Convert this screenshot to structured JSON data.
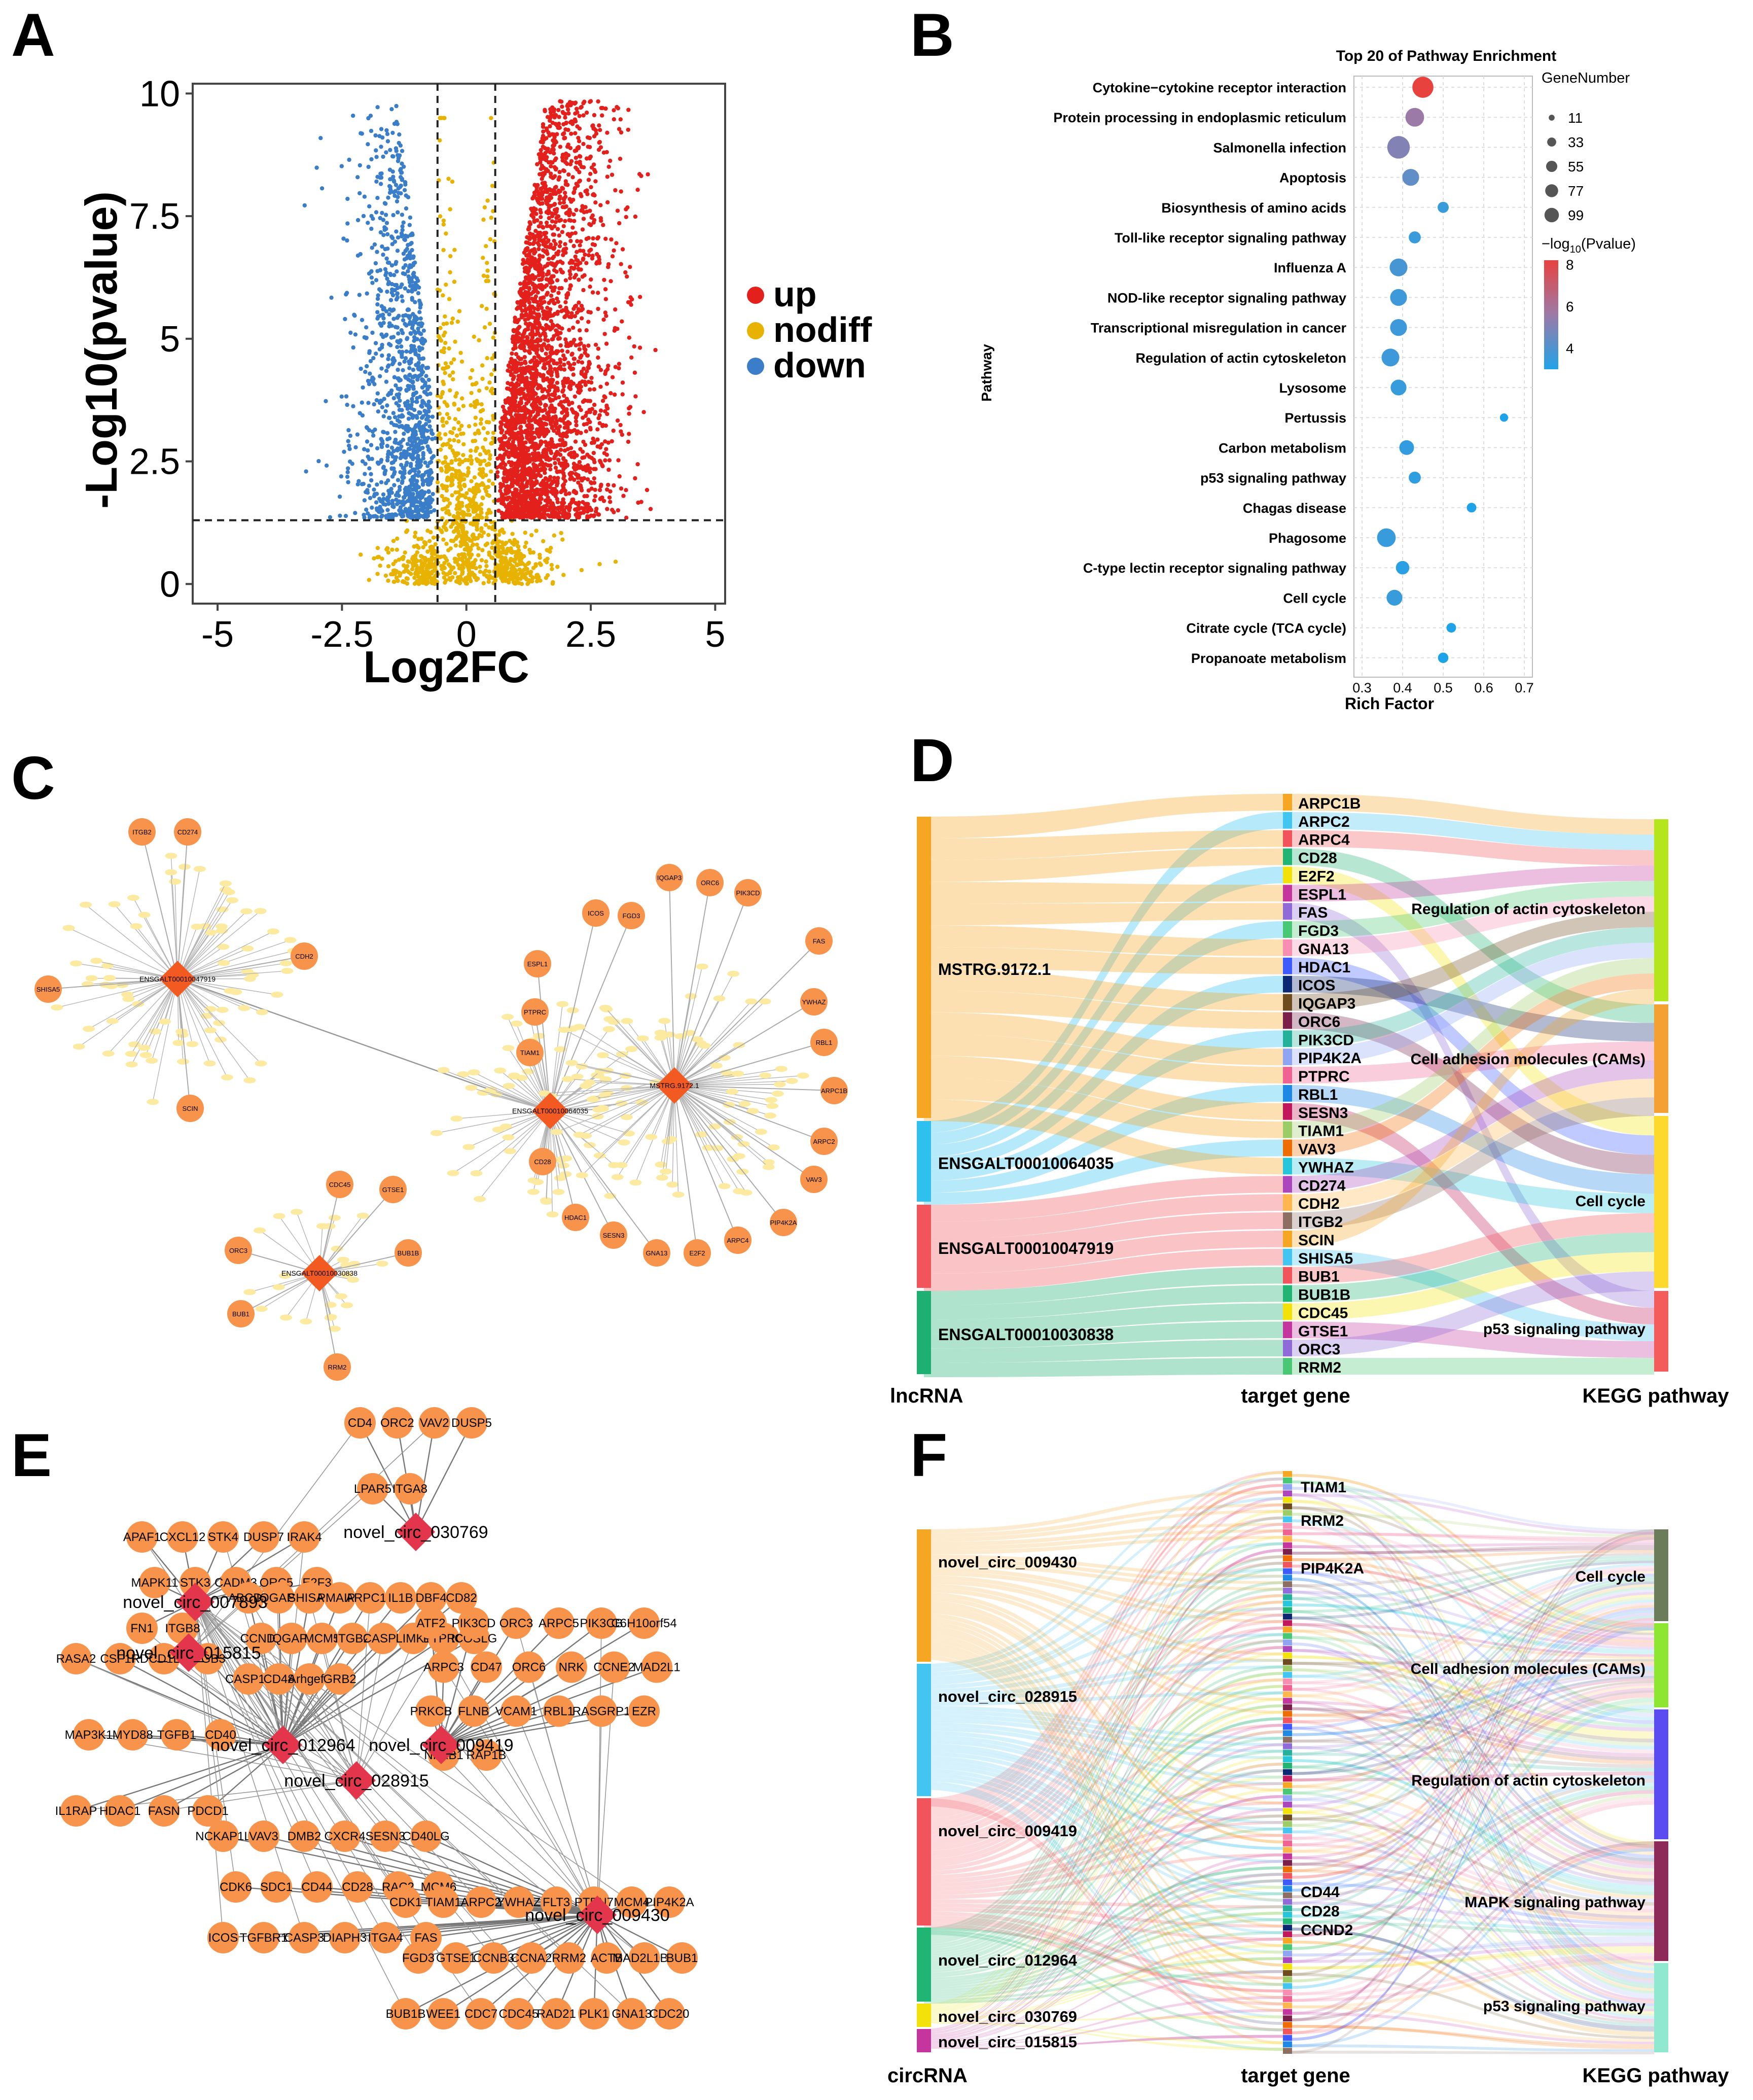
{
  "panels": {
    "A": "A",
    "B": "B",
    "C": "C",
    "D": "D",
    "E": "E",
    "F": "F"
  },
  "colors": {
    "up": "#e3201b",
    "nodiff": "#e8b200",
    "down": "#3a7dc9",
    "node": "#f7934a",
    "hub": "#e3364d",
    "hubC": "#f25a22",
    "leafC": "#fbeaa0"
  },
  "chart_data": [
    {
      "type": "scatter",
      "name": "volcano",
      "title": "",
      "xlabel": "Log2FC",
      "ylabel": "-Log10(pvalue)",
      "xlim": [
        -5.5,
        5.2
      ],
      "ylim": [
        -0.4,
        10.2
      ],
      "xticks": [
        "-5",
        "-2.5",
        "0",
        "2.5",
        "5"
      ],
      "xtick_values": [
        -5,
        -2.5,
        0,
        2.5,
        5
      ],
      "yticks": [
        "0",
        "2.5",
        "5",
        "7.5",
        "10"
      ],
      "ytick_values": [
        0,
        2.5,
        5,
        7.5,
        10
      ],
      "thresholds": {
        "log2fc": [
          -0.58,
          0.58
        ],
        "pvalue": 1.3
      },
      "legend": [
        {
          "label": "up",
          "color": "#e3201b"
        },
        {
          "label": "nodiff",
          "color": "#e8b200"
        },
        {
          "label": "down",
          "color": "#3a7dc9"
        }
      ],
      "legend_position": "right"
    },
    {
      "type": "scatter",
      "name": "pathway_enrichment",
      "title": "Top 20 of Pathway Enrichment",
      "xlabel": "Rich Factor",
      "ylabel": "Pathway",
      "xlim": [
        0.28,
        0.72
      ],
      "xticks": [
        "0.3",
        "0.4",
        "0.5",
        "0.6",
        "0.7"
      ],
      "xtick_values": [
        0.3,
        0.4,
        0.5,
        0.6,
        0.7
      ],
      "size_legend_title": "GeneNumber",
      "size_legend": [
        "11",
        "33",
        "55",
        "77",
        "99"
      ],
      "size_legend_values": [
        11,
        33,
        55,
        77,
        99
      ],
      "color_legend_title_pre": "−log",
      "color_legend_title_sub": "10",
      "color_legend_title_post": "(Pvalue)",
      "color_ticks": [
        "8",
        "6",
        "4"
      ],
      "color_tick_values": [
        8,
        6,
        4
      ],
      "pathways": [
        "Cytokine−cytokine receptor interaction",
        "Protein processing in endoplasmic reticulum",
        "Salmonella infection",
        "Apoptosis",
        "Biosynthesis of amino acids",
        "Toll-like receptor signaling pathway",
        "Influenza A",
        "NOD-like receptor signaling pathway",
        "Transcriptional misregulation in cancer",
        "Regulation of actin cytoskeleton",
        "Lysosome",
        "Pertussis",
        "Carbon metabolism",
        "p53 signaling pathway",
        "Chagas disease",
        "Phagosome",
        "C-type lectin receptor signaling pathway",
        "Cell cycle",
        "Citrate cycle (TCA cycle)",
        "Propanoate metabolism"
      ],
      "rich_factor": [
        0.45,
        0.43,
        0.39,
        0.42,
        0.5,
        0.43,
        0.39,
        0.39,
        0.39,
        0.37,
        0.39,
        0.65,
        0.41,
        0.43,
        0.57,
        0.36,
        0.4,
        0.38,
        0.52,
        0.5
      ],
      "gene_number": [
        60,
        45,
        70,
        35,
        12,
        15,
        40,
        35,
        35,
        40,
        30,
        5,
        25,
        15,
        8,
        45,
        20,
        30,
        8,
        10
      ],
      "neglog10p": [
        8.0,
        5.5,
        5.0,
        4.3,
        3.5,
        3.5,
        3.8,
        3.6,
        3.6,
        3.6,
        3.5,
        3.0,
        3.4,
        3.3,
        3.0,
        3.5,
        3.2,
        3.5,
        3.0,
        3.0
      ]
    }
  ],
  "networkC": {
    "hubs": [
      {
        "label": "ENSGALT00010047919",
        "targets": [
          "ITGB2",
          "CD274",
          "CDH2",
          "SHISA5",
          "SCIN"
        ]
      },
      {
        "label": "ENSGALT00010064035",
        "targets": [
          "ESPL1",
          "PTPRC",
          "TIAM1",
          "CD28",
          "HDAC1",
          "SESN3",
          "GNA13",
          "ICOS",
          "FGD3"
        ]
      },
      {
        "label": "MSTRG.9172.1",
        "targets": [
          "IQGAP3",
          "ORC6",
          "PIK3CD",
          "FAS",
          "YWHAZ",
          "RBL1",
          "ARPC1B",
          "ARPC2",
          "VAV3",
          "PIP4K2A",
          "ARPC4",
          "E2F2"
        ]
      },
      {
        "label": "ENSGALT00010030838",
        "targets": [
          "CDC45",
          "GTSE1",
          "ORC3",
          "BUB1B",
          "BUB1",
          "RRM2"
        ]
      }
    ]
  },
  "sankeyD": {
    "left_header": "lncRNA",
    "mid_header": "target gene",
    "right_header": "KEGG pathway",
    "lnc": [
      "MSTRG.9172.1",
      "ENSGALT00010064035",
      "ENSGALT00010047919",
      "ENSGALT00010030838"
    ],
    "genes": [
      "ARPC1B",
      "ARPC2",
      "ARPC4",
      "CD28",
      "E2F2",
      "ESPL1",
      "FAS",
      "FGD3",
      "GNA13",
      "HDAC1",
      "ICOS",
      "IQGAP3",
      "ORC6",
      "PIK3CD",
      "PIP4K2A",
      "PTPRC",
      "RBL1",
      "SESN3",
      "TIAM1",
      "VAV3",
      "YWHAZ",
      "CD274",
      "CDH2",
      "ITGB2",
      "SCIN",
      "SHISA5",
      "BUB1",
      "BUB1B",
      "CDC45",
      "GTSE1",
      "ORC3",
      "RRM2"
    ],
    "pathways": [
      "Regulation of actin cytoskeleton",
      "Cell adhesion molecules (CAMs)",
      "Cell cycle",
      "p53 signaling pathway"
    ]
  },
  "networkE": {
    "hubs": [
      "novel_circ_030769",
      "novel_circ_007893",
      "novel_circ_015815",
      "novel_circ_012964",
      "novel_circ_009419",
      "novel_circ_028915",
      "novel_circ_009430"
    ],
    "genes": [
      "CD4",
      "ORC2",
      "VAV2",
      "DUSP5",
      "LPAR5",
      "ITGA8",
      "APAF1",
      "CXCL12",
      "STK4",
      "DUSP7",
      "IRAK4",
      "MAPK11",
      "STK3",
      "CADM3",
      "ORC5",
      "E2F3",
      "FN1",
      "ITGB8",
      "RASA2",
      "CSF1R",
      "PDCD1LG2",
      "ITGB3",
      "MAP3K1",
      "MYD88",
      "TGFB1",
      "CD40",
      "IL1RAP",
      "HDAC1",
      "FASN",
      "PDCD1",
      "ABCD4",
      "IQGAP2",
      "SHISA5",
      "PMAIP1",
      "ARPC1B",
      "IL1B",
      "DBF4",
      "CD82",
      "CCND2",
      "IQGAP3",
      "MCM5",
      "ITGB2",
      "CASP8",
      "LIMK1",
      "PTPRC",
      "ICOSLG",
      "CASP18",
      "CD48",
      "Arhgef6",
      "GRB2",
      "ATF2",
      "PIK3CD",
      "ORC3",
      "ARPC5",
      "PIK3CB",
      "C6H10orf54",
      "ARPC3",
      "CD47",
      "ORC6",
      "NRK",
      "CCNE2",
      "MAD2L1",
      "PRKCB",
      "FLNB",
      "VCAM1",
      "RBL1",
      "RASGRP1",
      "EZR",
      "NFKB1",
      "RAP1B",
      "NCKAP1L",
      "VAV3",
      "DMB2",
      "CXCR4",
      "SESN3",
      "CD40LG",
      "CDK6",
      "SDC1",
      "CD44",
      "CD28",
      "RAC2",
      "MCM6",
      "ICOS",
      "TGFBR1",
      "CASP3",
      "DIAPH3",
      "ITGA4",
      "FAS",
      "CDK1",
      "TIAM1",
      "ARPC2",
      "YWHAZ",
      "FLT3",
      "PTPN7",
      "MCM4",
      "PIP4K2A",
      "FGD3",
      "GTSE1",
      "CCNB3",
      "CCNA2",
      "RRM2",
      "ACTB",
      "MAD2L1BP",
      "BUB1",
      "BUB1B",
      "WEE1",
      "CDC7",
      "CDC45",
      "RAD21",
      "PLK1",
      "GNA13",
      "CDC20"
    ]
  },
  "sankeyF": {
    "left_header": "circRNA",
    "mid_header": "target gene",
    "right_header": "KEGG pathway",
    "circ": [
      "novel_circ_009430",
      "novel_circ_028915",
      "novel_circ_009419",
      "novel_circ_012964",
      "novel_circ_030769",
      "novel_circ_015815"
    ],
    "labeled_genes": [
      "TIAM1",
      "RRM2",
      "PIP4K2A",
      "CD44",
      "CD28",
      "CCND2"
    ],
    "pathways": [
      "Cell cycle",
      "Cell adhesion molecules (CAMs)",
      "Regulation of actin cytoskeleton",
      "MAPK signaling pathway",
      "p53 signaling pathway"
    ]
  }
}
